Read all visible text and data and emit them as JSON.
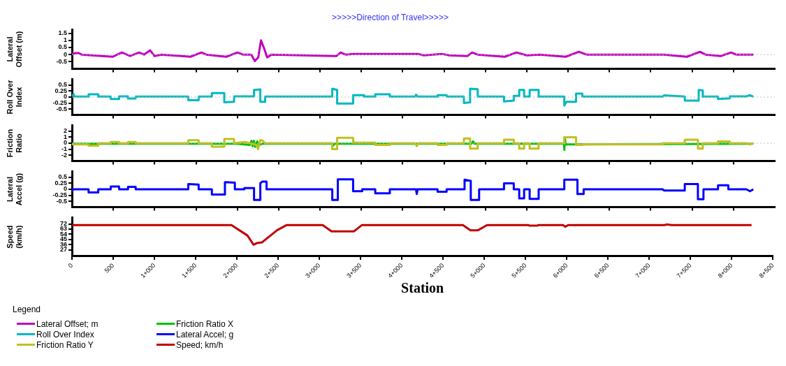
{
  "chart_data": [
    {
      "type": "line",
      "title": ">>>>>Direction of Travel>>>>>",
      "ylabel": "Lateral Offset (m)",
      "xlim": [
        0,
        8500
      ],
      "xticks": [
        {
          "value": 500,
          "label": null
        },
        {
          "value": 1000,
          "label": null
        },
        {
          "value": 1500,
          "label": null
        },
        {
          "value": 2000,
          "label": null
        },
        {
          "value": 2500,
          "label": null
        },
        {
          "value": 3000,
          "label": null
        },
        {
          "value": 3500,
          "label": null
        },
        {
          "value": 4000,
          "label": null
        },
        {
          "value": 4500,
          "label": null
        },
        {
          "value": 5000,
          "label": null
        },
        {
          "value": 5500,
          "label": null
        },
        {
          "value": 6000,
          "label": null
        },
        {
          "value": 6500,
          "label": null
        },
        {
          "value": 7000,
          "label": null
        },
        {
          "value": 7500,
          "label": null
        },
        {
          "value": 8000,
          "label": null
        }
      ],
      "ylim": [
        -1,
        1.75
      ],
      "yticks": [
        -0.5,
        0,
        0.5,
        1,
        1.5
      ],
      "tick_labels": "y",
      "legend": "bottom",
      "ref_lines": [
        {
          "axis": "y",
          "value": 0,
          "color": "#c0c0c0",
          "line_style": "dotted"
        }
      ],
      "series": [
        {
          "name": "Lateral Offset; m",
          "color": "#c000c0",
          "x": [
            0,
            34,
            84,
            117,
            494,
            603,
            703,
            812,
            871,
            946,
            997,
            1080,
            1432,
            1566,
            1625,
            1867,
            2001,
            2068,
            2169,
            2211,
            2253,
            2286,
            2320,
            2361,
            2412,
            3199,
            3249,
            3308,
            3408,
            4186,
            4254,
            4472,
            4564,
            4782,
            4840,
            4907,
            5234,
            5376,
            5502,
            5661,
            5971,
            6130,
            6222,
            7160,
            7436,
            7595,
            7662,
            7846,
            7972,
            8031,
            8240
          ],
          "values": [
            0,
            0.1,
            0.1,
            0,
            -0.15,
            0.15,
            -0.1,
            0.15,
            0,
            0.3,
            -0.1,
            0,
            -0.15,
            0.15,
            0,
            -0.15,
            0.15,
            0,
            0,
            -0.45,
            -0.2,
            1,
            0.5,
            -0.2,
            0,
            -0.1,
            0.15,
            0,
            0.05,
            0.05,
            -0.05,
            0.05,
            -0.05,
            -0.1,
            0.15,
            0,
            -0.15,
            0.15,
            -0.05,
            0,
            -0.15,
            0.2,
            0,
            0,
            -0.15,
            0.2,
            0,
            -0.1,
            0.15,
            0,
            0
          ]
        }
      ]
    },
    {
      "type": "line",
      "ylabel": "Roll Over Index",
      "xlim": [
        0,
        8500
      ],
      "xticks": [
        {
          "value": 500,
          "label": null
        },
        {
          "value": 1000,
          "label": null
        },
        {
          "value": 1500,
          "label": null
        },
        {
          "value": 2000,
          "label": null
        },
        {
          "value": 2500,
          "label": null
        },
        {
          "value": 3000,
          "label": null
        },
        {
          "value": 3500,
          "label": null
        },
        {
          "value": 4000,
          "label": null
        },
        {
          "value": 4500,
          "label": null
        },
        {
          "value": 5000,
          "label": null
        },
        {
          "value": 5500,
          "label": null
        },
        {
          "value": 6000,
          "label": null
        },
        {
          "value": 6500,
          "label": null
        },
        {
          "value": 7000,
          "label": null
        },
        {
          "value": 7500,
          "label": null
        },
        {
          "value": 8000,
          "label": null
        }
      ],
      "ylim": [
        -0.75,
        0.75
      ],
      "yticks": [
        -0.5,
        -0.25,
        0,
        0.25,
        0.5
      ],
      "tick_labels": "y",
      "legend": "bottom",
      "ref_lines": [
        {
          "axis": "y",
          "value": 0,
          "color": "#c0c0c0",
          "line_style": "dotted"
        }
      ],
      "series": [
        {
          "name": "Roll Over Index",
          "color": "#00b8c0",
          "x": [
            0,
            20,
            30,
            201,
            201,
            318,
            318,
            469,
            469,
            570,
            570,
            678,
            678,
            770,
            770,
            1407,
            1407,
            1532,
            1532,
            1692,
            1692,
            1842,
            1842,
            1960,
            1960,
            2202,
            2202,
            2278,
            2278,
            2336,
            2336,
            3148,
            3148,
            3207,
            3207,
            3400,
            3400,
            3534,
            3534,
            3668,
            3668,
            3844,
            3844,
            4150,
            4162,
            4180,
            4422,
            4422,
            4531,
            4531,
            4740,
            4740,
            4815,
            4815,
            4907,
            4907,
            5225,
            5225,
            5343,
            5343,
            5409,
            5409,
            5468,
            5468,
            5535,
            5535,
            5644,
            5644,
            5954,
            5954,
            5980,
            6096,
            6096,
            6172,
            6172,
            7143,
            7160,
            7411,
            7411,
            7579,
            7579,
            7629,
            7629,
            7813,
            7813,
            7955,
            7955,
            8156,
            8200,
            8240
          ],
          "values": [
            0.05,
            0.12,
            0.02,
            0.02,
            0.12,
            0.12,
            0.02,
            0.02,
            -0.08,
            -0.08,
            0.03,
            0.03,
            -0.06,
            -0.06,
            0.02,
            0.02,
            -0.13,
            -0.13,
            0.02,
            0.02,
            0.17,
            0.17,
            -0.22,
            -0.2,
            0.03,
            0.03,
            0.3,
            0.32,
            -0.2,
            -0.2,
            0.02,
            0.02,
            0.35,
            0.3,
            -0.27,
            -0.27,
            0.08,
            0.08,
            0.02,
            0.02,
            0.12,
            0.12,
            0.02,
            0.02,
            0.1,
            0.02,
            0.02,
            0.08,
            0.08,
            0.02,
            0.02,
            -0.25,
            -0.22,
            0.35,
            0.33,
            0.02,
            0.02,
            -0.18,
            -0.15,
            0.05,
            0.05,
            0.3,
            0.3,
            0.02,
            0.02,
            0.3,
            0.3,
            0.02,
            0.02,
            -0.35,
            -0.2,
            -0.2,
            0.15,
            0.15,
            0.02,
            0.02,
            0.07,
            0.02,
            -0.15,
            -0.15,
            0.3,
            0.28,
            0.02,
            0.02,
            -0.08,
            -0.05,
            0.03,
            0.03,
            0.08,
            0.02
          ]
        }
      ]
    },
    {
      "type": "line",
      "ylabel": "Friction Ratio",
      "xlim": [
        0,
        8500
      ],
      "xticks": [
        {
          "value": 500,
          "label": null
        },
        {
          "value": 1000,
          "label": null
        },
        {
          "value": 1500,
          "label": null
        },
        {
          "value": 2000,
          "label": null
        },
        {
          "value": 2500,
          "label": null
        },
        {
          "value": 3000,
          "label": null
        },
        {
          "value": 3500,
          "label": null
        },
        {
          "value": 4000,
          "label": null
        },
        {
          "value": 4500,
          "label": null
        },
        {
          "value": 5000,
          "label": null
        },
        {
          "value": 5500,
          "label": null
        },
        {
          "value": 6000,
          "label": null
        },
        {
          "value": 6500,
          "label": null
        },
        {
          "value": 7000,
          "label": null
        },
        {
          "value": 7500,
          "label": null
        },
        {
          "value": 8000,
          "label": null
        }
      ],
      "ylim": [
        -3,
        3
      ],
      "yticks": [
        -2,
        -1,
        0,
        1,
        2
      ],
      "tick_labels": "y",
      "legend": "bottom",
      "ref_lines": [
        {
          "axis": "y",
          "value": 0,
          "color": "#c0c0c0",
          "line_style": "dotted"
        }
      ],
      "series": [
        {
          "name": "Friction Ratio Y",
          "color": "#c0c020",
          "x": [
            0,
            201,
            201,
            318,
            318,
            469,
            469,
            570,
            570,
            678,
            678,
            770,
            770,
            1407,
            1407,
            1532,
            1532,
            1692,
            1692,
            1842,
            1842,
            1960,
            1960,
            2085,
            2150,
            2230,
            2250,
            2278,
            2300,
            2336,
            3148,
            3148,
            3207,
            3207,
            3400,
            3400,
            3668,
            3668,
            3844,
            3844,
            4150,
            4170,
            4190,
            4422,
            4422,
            4531,
            4531,
            4740,
            4740,
            4815,
            4815,
            4907,
            4907,
            5225,
            5225,
            5343,
            5343,
            5409,
            5409,
            5468,
            5468,
            5535,
            5535,
            5644,
            5644,
            5954,
            5954,
            6096,
            6096,
            6172,
            6172,
            7143,
            7143,
            7411,
            7411,
            7570,
            7570,
            7629,
            7629,
            7813,
            7813,
            7955,
            7955,
            8156,
            8200,
            8240
          ],
          "values": [
            -0.2,
            -0.2,
            -0.4,
            -0.4,
            0,
            0,
            0.2,
            0.2,
            0,
            0,
            0.2,
            0.2,
            0,
            0,
            0.5,
            0.5,
            0,
            0,
            -0.6,
            -0.6,
            0.7,
            0.7,
            0,
            0.2,
            0,
            -0.3,
            -1,
            0.5,
            0.5,
            0,
            0,
            -1,
            -1,
            0.9,
            0.9,
            0.1,
            0.1,
            -0.3,
            -0.3,
            0,
            0,
            -0.5,
            0,
            0,
            -0.3,
            -0.3,
            0,
            0,
            0.8,
            0.8,
            -0.9,
            -0.9,
            0,
            0,
            0.6,
            0.6,
            0,
            0,
            -0.9,
            -0.9,
            0,
            0,
            -0.9,
            -0.9,
            0,
            0,
            1,
            1,
            -0.3,
            -0.3,
            -0.2,
            -0.2,
            0,
            0,
            0.6,
            0.6,
            -0.9,
            -0.9,
            0,
            0,
            0.3,
            0.3,
            0,
            0,
            -0.2,
            0
          ]
        },
        {
          "name": "Friction Ratio X",
          "color": "#00c000",
          "x": [
            0,
            2000,
            2150,
            2170,
            2185,
            2200,
            2215,
            2240,
            2260,
            2300,
            3150,
            3160,
            3170,
            3400,
            3410,
            3420,
            4830,
            4850,
            4870,
            5950,
            5955,
            5960,
            5970,
            8240
          ],
          "values": [
            -0.1,
            -0.1,
            -0.3,
            0.4,
            -0.5,
            0.4,
            -0.6,
            0.3,
            -0.3,
            -0.1,
            -0.1,
            -0.4,
            -0.1,
            -0.1,
            0.2,
            -0.1,
            -0.1,
            0.3,
            -0.1,
            -0.1,
            -1.1,
            1,
            -0.2,
            -0.1
          ]
        }
      ]
    },
    {
      "type": "line",
      "ylabel": "Lateral Accel (g)",
      "xlim": [
        0,
        8500
      ],
      "xticks": [
        {
          "value": 500,
          "label": null
        },
        {
          "value": 1000,
          "label": null
        },
        {
          "value": 1500,
          "label": null
        },
        {
          "value": 2000,
          "label": null
        },
        {
          "value": 2500,
          "label": null
        },
        {
          "value": 3000,
          "label": null
        },
        {
          "value": 3500,
          "label": null
        },
        {
          "value": 4000,
          "label": null
        },
        {
          "value": 4500,
          "label": null
        },
        {
          "value": 5000,
          "label": null
        },
        {
          "value": 5500,
          "label": null
        },
        {
          "value": 6000,
          "label": null
        },
        {
          "value": 6500,
          "label": null
        },
        {
          "value": 7000,
          "label": null
        },
        {
          "value": 7500,
          "label": null
        },
        {
          "value": 8000,
          "label": null
        }
      ],
      "ylim": [
        -0.75,
        0.75
      ],
      "yticks": [
        -0.5,
        -0.25,
        0,
        0.25,
        0.5
      ],
      "tick_labels": "y",
      "legend": "bottom",
      "series": [
        {
          "name": "Lateral Accel; g",
          "color": "#0000ff",
          "x": [
            0,
            15,
            30,
            201,
            201,
            318,
            318,
            469,
            469,
            570,
            570,
            678,
            678,
            770,
            770,
            1407,
            1407,
            1532,
            1532,
            1692,
            1692,
            1850,
            1850,
            1970,
            1970,
            2085,
            2085,
            2202,
            2202,
            2278,
            2278,
            2300,
            2353,
            2353,
            3148,
            3148,
            3215,
            3215,
            3400,
            3400,
            3510,
            3510,
            3668,
            3668,
            3844,
            3844,
            4160,
            4170,
            4180,
            4422,
            4422,
            4531,
            4531,
            4748,
            4748,
            4823,
            4823,
            4924,
            4924,
            5225,
            5225,
            5343,
            5343,
            5409,
            5409,
            5468,
            5468,
            5535,
            5535,
            5644,
            5644,
            5954,
            5954,
            6113,
            6113,
            6188,
            6188,
            7143,
            7160,
            7411,
            7411,
            7570,
            7570,
            7637,
            7637,
            7813,
            7813,
            7938,
            7938,
            8156,
            8200,
            8240
          ],
          "values": [
            -0.1,
            0,
            0,
            0,
            -0.13,
            -0.13,
            0,
            0,
            0.12,
            0.12,
            0,
            0,
            0.1,
            0.1,
            0,
            0,
            0.22,
            0.2,
            0,
            0,
            -0.22,
            -0.22,
            0.3,
            0.28,
            0,
            0,
            0.05,
            0.05,
            -0.45,
            -0.45,
            0.25,
            0.32,
            0.32,
            0,
            0,
            -0.45,
            -0.45,
            0.42,
            0.42,
            -0.08,
            -0.08,
            0,
            0,
            -0.17,
            -0.17,
            0,
            0,
            -0.2,
            0,
            0,
            -0.1,
            -0.1,
            0,
            0,
            0.4,
            0.35,
            -0.45,
            -0.45,
            0,
            0,
            0.25,
            0.25,
            0,
            0,
            -0.38,
            -0.38,
            0,
            0,
            -0.4,
            -0.4,
            0,
            0,
            0.4,
            0.4,
            -0.2,
            -0.2,
            0,
            0,
            -0.05,
            -0.05,
            0.22,
            0.22,
            -0.42,
            -0.42,
            0,
            0,
            0.17,
            0.17,
            0,
            0,
            -0.08,
            0
          ]
        }
      ]
    },
    {
      "type": "line",
      "ylabel": "Speed (km/h)",
      "xlabel": "Station",
      "legend_title": "Legend",
      "xlim": [
        0,
        8500
      ],
      "xticks": [
        0,
        500,
        {
          "value": 1000,
          "label": "1+000"
        },
        {
          "value": 1500,
          "label": "1+500"
        },
        {
          "value": 2000,
          "label": "2+000"
        },
        {
          "value": 2500,
          "label": "2+500"
        },
        {
          "value": 3000,
          "label": "3+000"
        },
        {
          "value": 3500,
          "label": "3+500"
        },
        {
          "value": 4000,
          "label": "4+000"
        },
        {
          "value": 4500,
          "label": "4+500"
        },
        {
          "value": 5000,
          "label": "5+000"
        },
        {
          "value": 5500,
          "label": "5+500"
        },
        {
          "value": 6000,
          "label": "6+000"
        },
        {
          "value": 6500,
          "label": "6+500"
        },
        {
          "value": 7000,
          "label": "7+000"
        },
        {
          "value": 7500,
          "label": "7+500"
        },
        {
          "value": 8000,
          "label": "8+000"
        },
        {
          "value": 8500,
          "label": "8+500"
        }
      ],
      "ylim": [
        16,
        83
      ],
      "yticks": [
        27,
        36,
        45,
        54,
        63,
        72
      ],
      "legend": "bottom",
      "series": [
        {
          "name": "Speed; km/h",
          "color": "#c00000",
          "x": [
            0,
            1934,
            2127,
            2202,
            2244,
            2303,
            2487,
            2604,
            3040,
            3148,
            3417,
            3517,
            4740,
            4832,
            4924,
            5033,
            5535,
            5545,
            5644,
            5654,
            5954,
            5979,
            6021,
            7193,
            7210,
            7269,
            8240
          ],
          "values": [
            70,
            70,
            52,
            36,
            39,
            40,
            61,
            70,
            70,
            59,
            59,
            70,
            70,
            61,
            61,
            70,
            70,
            69,
            69,
            70,
            70,
            67,
            70,
            70,
            71,
            70,
            70
          ]
        }
      ]
    }
  ]
}
